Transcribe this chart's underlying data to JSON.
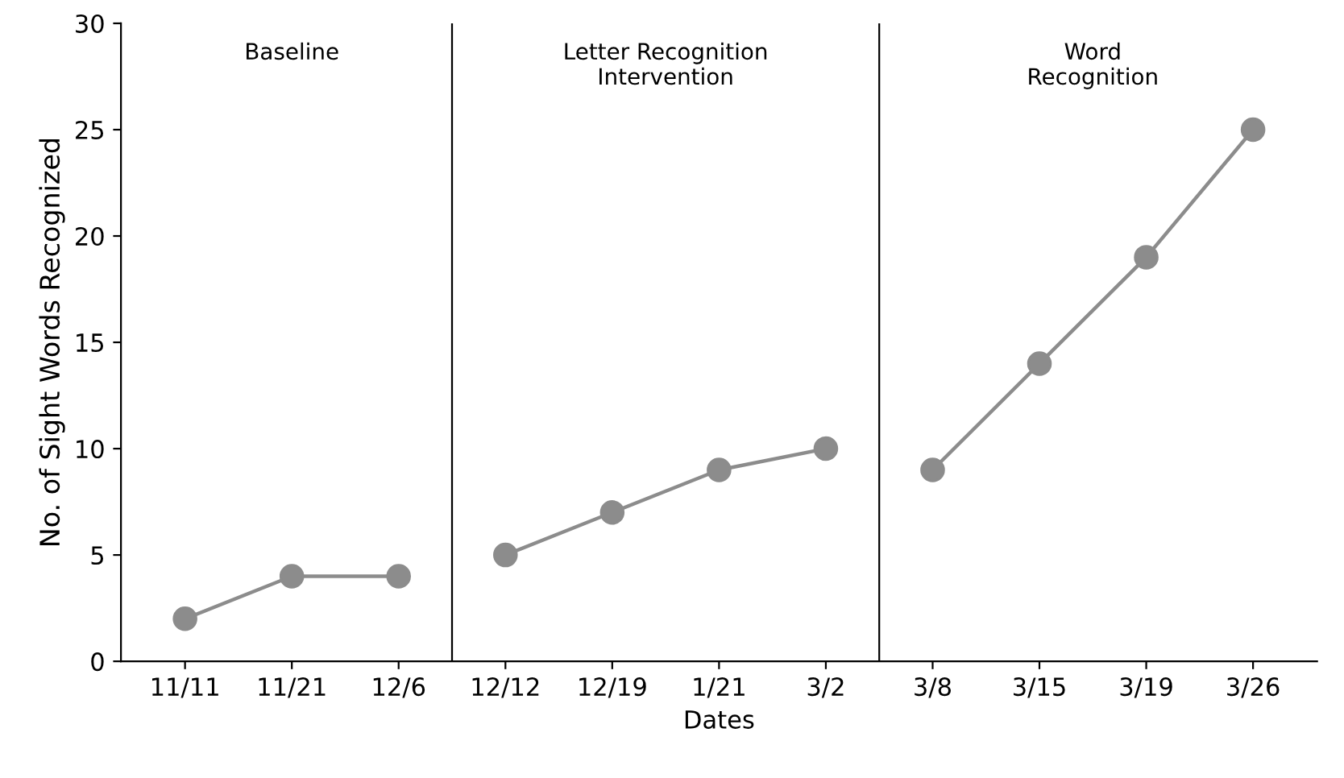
{
  "chart_data": {
    "type": "line",
    "xlabel": "Dates",
    "ylabel": "No. of Sight Words Recognized",
    "categories": [
      "11/11",
      "11/21",
      "12/6",
      "12/12",
      "12/19",
      "1/21",
      "3/2",
      "3/8",
      "3/15",
      "3/19",
      "3/26"
    ],
    "series": [
      {
        "color": "#8c8c8c",
        "values": [
          2,
          4,
          4,
          null,
          null,
          null,
          null,
          null,
          null,
          null,
          null
        ]
      },
      {
        "color": "#8c8c8c",
        "values": [
          null,
          null,
          null,
          5,
          7,
          9,
          10,
          null,
          null,
          null,
          null
        ]
      },
      {
        "color": "#8c8c8c",
        "values": [
          null,
          null,
          null,
          null,
          null,
          null,
          null,
          9,
          14,
          19,
          25
        ]
      }
    ],
    "ylim": [
      0,
      30
    ],
    "yticks": [
      0,
      5,
      10,
      15,
      20,
      25,
      30
    ],
    "grid": false,
    "legend": false,
    "marker": "circle",
    "line_style": "solid",
    "annotations": [
      "Baseline",
      "Letter Recognition\nIntervention",
      "Word\nRecognition"
    ]
  }
}
